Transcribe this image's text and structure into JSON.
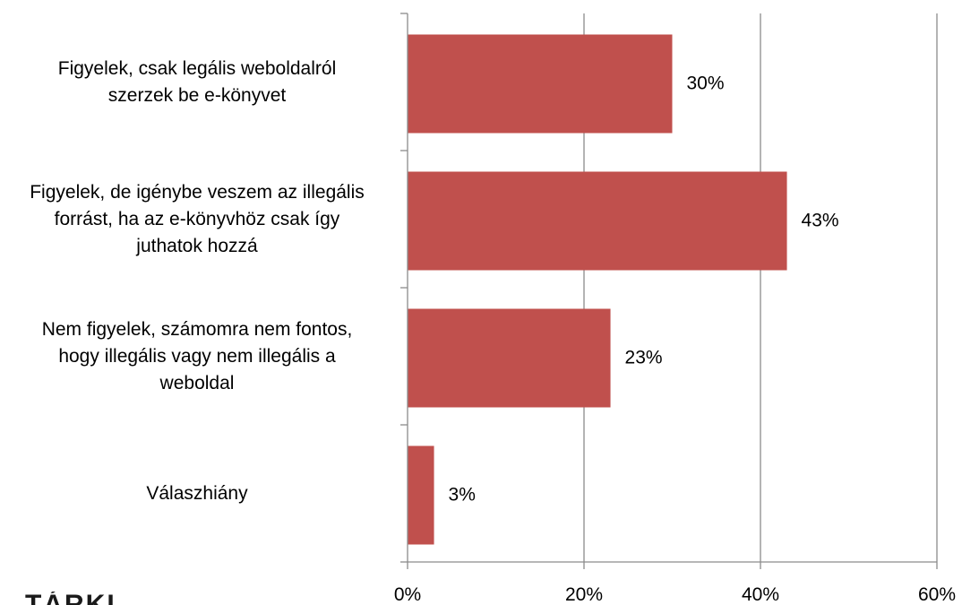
{
  "chart_data": {
    "type": "bar",
    "orientation": "horizontal",
    "categories": [
      [
        "Figyelek, csak legális weboldalról",
        "szerzek be e-könyvet"
      ],
      [
        "Figyelek, de igénybe veszem az illegális",
        "forrást, ha az e-könyvhöz csak így",
        "juthatok hozzá"
      ],
      [
        "Nem figyelek, számomra nem fontos,",
        "hogy illegális vagy nem illegális a",
        "weboldal"
      ],
      [
        "Válaszhiány"
      ]
    ],
    "values": [
      30,
      43,
      23,
      3
    ],
    "value_labels": [
      "30%",
      "43%",
      "23%",
      "3%"
    ],
    "xlim": [
      0,
      60
    ],
    "xticks": [
      0,
      20,
      40,
      60
    ],
    "xtick_labels": [
      "0%",
      "20%",
      "40%",
      "60%"
    ],
    "grid": "vertical",
    "bar_color": "#c0504d",
    "title": "",
    "xlabel": "",
    "ylabel": ""
  },
  "footer_logo_text": "TÁRKI"
}
